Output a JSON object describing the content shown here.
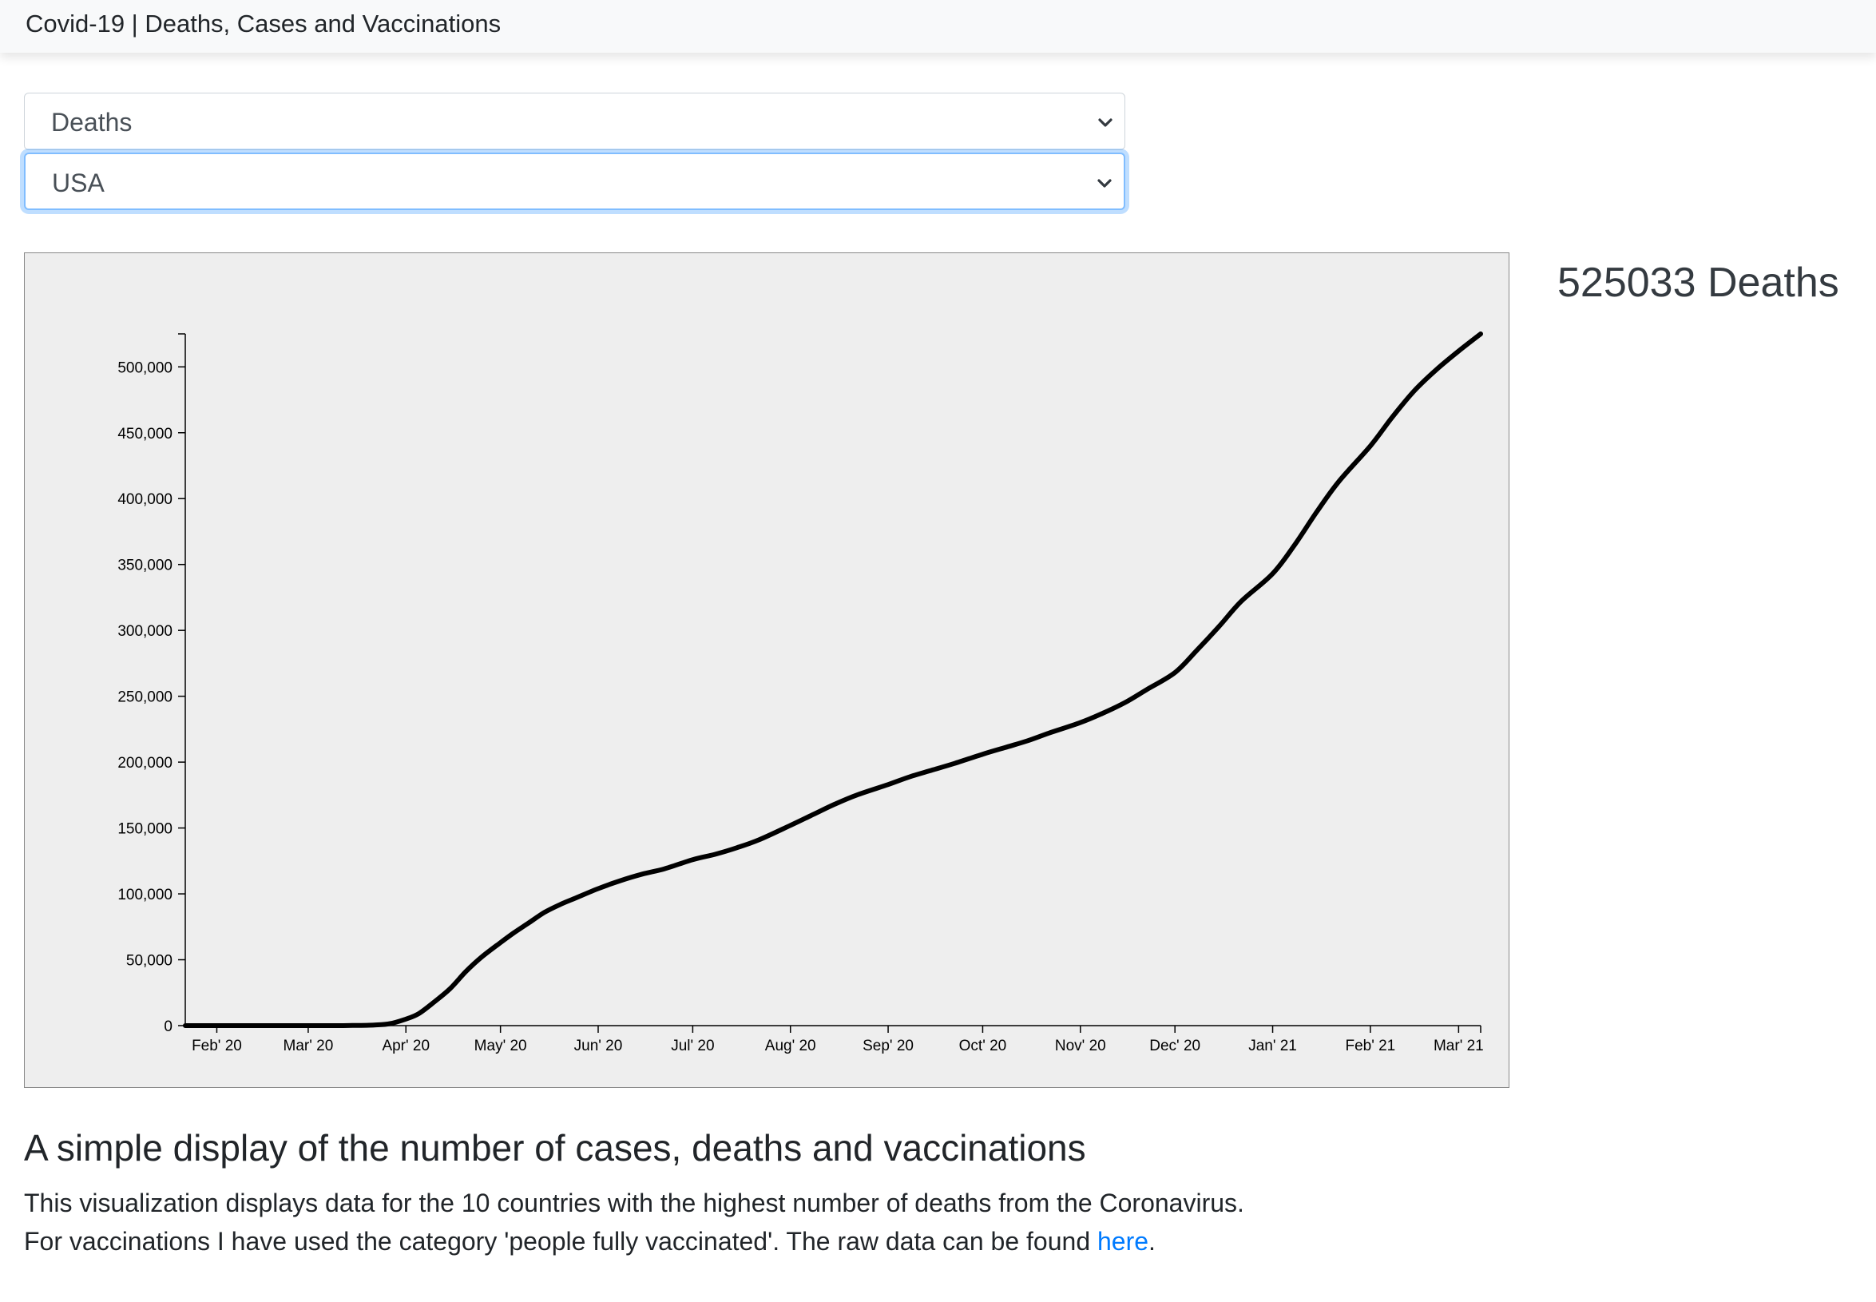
{
  "navbar": {
    "title": "Covid-19 | Deaths, Cases and Vaccinations"
  },
  "controls": {
    "metric_select": {
      "value": "Deaths",
      "icon": "chevron-down-icon"
    },
    "country_select": {
      "value": "USA",
      "icon": "chevron-down-icon"
    }
  },
  "stat": {
    "value": "525033",
    "label": "Deaths"
  },
  "chart_data": {
    "type": "line",
    "xlabel": "",
    "ylabel": "",
    "x_ticks": [
      "Feb' 20",
      "Mar' 20",
      "Apr' 20",
      "May' 20",
      "Jun' 20",
      "Jul' 20",
      "Aug' 20",
      "Sep' 20",
      "Oct' 20",
      "Nov' 20",
      "Dec' 20",
      "Jan' 21",
      "Feb' 21",
      "Mar' 21"
    ],
    "y_ticks": [
      "0",
      "50,000",
      "100,000",
      "150,000",
      "200,000",
      "250,000",
      "300,000",
      "350,000",
      "400,000",
      "450,000",
      "500,000"
    ],
    "xlim": [
      "2020-01-22",
      "2021-03-08"
    ],
    "ylim": [
      0,
      525033
    ],
    "grid": false,
    "series": [
      {
        "color": "#000000",
        "points": [
          [
            "2020-01-22",
            0
          ],
          [
            "2020-02-15",
            0
          ],
          [
            "2020-03-01",
            1
          ],
          [
            "2020-03-10",
            30
          ],
          [
            "2020-03-15",
            100
          ],
          [
            "2020-03-22",
            500
          ],
          [
            "2020-03-27",
            1500
          ],
          [
            "2020-04-01",
            5000
          ],
          [
            "2020-04-05",
            9000
          ],
          [
            "2020-04-10",
            18000
          ],
          [
            "2020-04-15",
            28000
          ],
          [
            "2020-04-20",
            41000
          ],
          [
            "2020-04-25",
            52000
          ],
          [
            "2020-05-01",
            63000
          ],
          [
            "2020-05-05",
            70000
          ],
          [
            "2020-05-10",
            78000
          ],
          [
            "2020-05-15",
            86000
          ],
          [
            "2020-05-20",
            92000
          ],
          [
            "2020-05-25",
            97000
          ],
          [
            "2020-06-01",
            104000
          ],
          [
            "2020-06-08",
            110000
          ],
          [
            "2020-06-15",
            115000
          ],
          [
            "2020-06-22",
            119000
          ],
          [
            "2020-07-01",
            126000
          ],
          [
            "2020-07-08",
            130000
          ],
          [
            "2020-07-15",
            135000
          ],
          [
            "2020-07-22",
            141000
          ],
          [
            "2020-08-01",
            152000
          ],
          [
            "2020-08-08",
            160000
          ],
          [
            "2020-08-15",
            168000
          ],
          [
            "2020-08-22",
            175000
          ],
          [
            "2020-09-01",
            183000
          ],
          [
            "2020-09-08",
            189000
          ],
          [
            "2020-09-15",
            194000
          ],
          [
            "2020-09-22",
            199000
          ],
          [
            "2020-10-01",
            206000
          ],
          [
            "2020-10-08",
            211000
          ],
          [
            "2020-10-15",
            216000
          ],
          [
            "2020-10-22",
            222000
          ],
          [
            "2020-11-01",
            230000
          ],
          [
            "2020-11-08",
            237000
          ],
          [
            "2020-11-15",
            245000
          ],
          [
            "2020-11-22",
            255000
          ],
          [
            "2020-12-01",
            268000
          ],
          [
            "2020-12-08",
            285000
          ],
          [
            "2020-12-15",
            303000
          ],
          [
            "2020-12-22",
            322000
          ],
          [
            "2021-01-01",
            343000
          ],
          [
            "2021-01-08",
            365000
          ],
          [
            "2021-01-15",
            390000
          ],
          [
            "2021-01-22",
            413000
          ],
          [
            "2021-02-01",
            440000
          ],
          [
            "2021-02-08",
            462000
          ],
          [
            "2021-02-15",
            482000
          ],
          [
            "2021-02-22",
            498000
          ],
          [
            "2021-03-01",
            512000
          ],
          [
            "2021-03-08",
            525033
          ]
        ]
      }
    ]
  },
  "description": {
    "heading": "A simple display of the number of cases, deaths and vaccinations",
    "line1": "This visualization displays data for the 10 countries with the highest number of deaths from the Coronavirus.",
    "line2_prefix": "For vaccinations I have used the category 'people fully vaccinated'. The raw data can be found ",
    "link_text": "here",
    "line2_suffix": ".",
    "link_color": "#007bff"
  }
}
